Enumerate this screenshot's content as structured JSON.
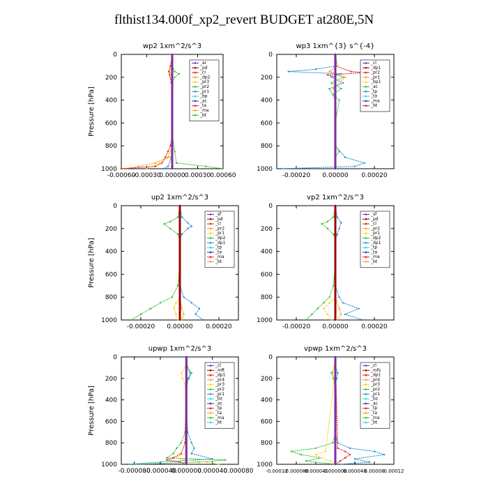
{
  "page": {
    "title": "flthist134.000f_xp2_revert  BUDGET at280E,5N"
  },
  "colors": {
    "purple": "#7f2aa6",
    "red": "#e02020",
    "darkred": "#a00000",
    "orange": "#ff9a1a",
    "yellow": "#ffd21a",
    "green": "#30c030",
    "blue": "#1e8fd0",
    "cyan": "#28d8e8",
    "navy": "#1a3aa0",
    "black": "#000000"
  },
  "chart_data": [
    {
      "type": "line",
      "title": "wp2  1xm^2/s^3",
      "ylabel": "Pressure [hPa]",
      "ylim": [
        1000,
        0
      ],
      "xlim": [
        -0.0006,
        0.0006
      ],
      "yticks": [
        "0",
        "200",
        "400",
        "600",
        "800",
        "1000"
      ],
      "xticks": [
        "-0.00060",
        "-0.00030",
        "0.00000",
        "0.00030",
        "0.00060"
      ],
      "legend_position": "top-right",
      "legend": [
        "_ar",
        "_pd",
        "_cl",
        "_dp2",
        "_pr3",
        "_pr2",
        "_pr1",
        "_bp",
        "_ac",
        "_ta",
        "_ma",
        "_bt"
      ],
      "series": [
        {
          "name": "_pr1",
          "color": "green",
          "y": [
            0,
            100,
            150,
            170,
            200,
            250,
            400,
            700,
            850,
            950,
            980,
            1000
          ],
          "x": [
            0,
            0,
            3e-05,
            8e-05,
            3e-05,
            0,
            0,
            0,
            3e-05,
            5e-05,
            0.0004,
            0.0006
          ]
        },
        {
          "name": "_pr2",
          "color": "yellow",
          "y": [
            0,
            100,
            150,
            200,
            300,
            600,
            800,
            900,
            950,
            1000
          ],
          "x": [
            0,
            0,
            -4e-05,
            -2e-05,
            0,
            0,
            0,
            -3e-05,
            -0.00015,
            -0.0003
          ]
        },
        {
          "name": "_pr3",
          "color": "orange",
          "y": [
            0,
            100,
            150,
            200,
            400,
            800,
            900,
            950,
            980,
            1000
          ],
          "x": [
            0,
            0,
            -3e-05,
            0,
            0,
            0,
            -5e-05,
            -0.0002,
            -0.0004,
            -0.00055
          ]
        },
        {
          "name": "_dp2",
          "color": "red",
          "y": [
            0,
            100,
            150,
            180,
            250,
            400,
            700,
            800,
            850,
            900,
            950,
            980,
            1000
          ],
          "x": [
            0,
            -2e-05,
            -4e-05,
            -3e-05,
            -1e-05,
            0,
            0,
            -2e-05,
            -5e-05,
            -8e-05,
            -0.00012,
            -0.0002,
            -0.0006
          ]
        },
        {
          "name": "_bp",
          "color": "blue",
          "y": [
            0,
            200,
            500,
            800,
            900,
            980,
            1000
          ],
          "x": [
            0,
            0,
            0,
            0,
            -1e-05,
            -5e-05,
            -0.0001
          ]
        },
        {
          "name": "_bt",
          "color": "purple",
          "y": [
            0,
            1000
          ],
          "x": [
            0,
            0
          ]
        }
      ]
    },
    {
      "type": "line",
      "title": "wp3  1xm^{3} s^{-4}",
      "ylabel": "",
      "ylim": [
        1000,
        0
      ],
      "xlim": [
        -0.0003,
        0.0003
      ],
      "yticks": [
        "0",
        "200",
        "400",
        "600",
        "800",
        "1000"
      ],
      "xticks": [
        "-0.00020",
        "0.00000",
        "0.00020"
      ],
      "legend_position": "top-right",
      "legend": [
        "_cl",
        "_dp1",
        "_pr2",
        "_pr1",
        "_bp1",
        "_ac",
        "_tp",
        "_ta",
        "_ma",
        "_bt"
      ],
      "series": [
        {
          "name": "_tp",
          "color": "blue",
          "y": [
            0,
            100,
            130,
            150,
            170,
            200,
            250,
            300,
            400,
            600,
            800,
            900,
            950,
            980,
            1000
          ],
          "x": [
            0,
            1e-05,
            -0.0001,
            -0.00024,
            3e-05,
            -2e-05,
            4e-05,
            -3e-05,
            0,
            0,
            0,
            5e-05,
            0.00015,
            0.0001,
            -0.00028
          ]
        },
        {
          "name": "_dp1",
          "color": "red",
          "y": [
            0,
            100,
            150,
            160,
            180,
            200,
            300,
            1000
          ],
          "x": [
            0,
            0,
            8e-05,
            0.00015,
            -4e-05,
            0,
            0,
            0
          ]
        },
        {
          "name": "_ac",
          "color": "green",
          "y": [
            0,
            100,
            150,
            200,
            250,
            300,
            350,
            400,
            600,
            800,
            850,
            900,
            1000
          ],
          "x": [
            0,
            1e-05,
            -3e-05,
            4e-05,
            -2e-05,
            3e-05,
            -1e-05,
            2e-05,
            0,
            0,
            2e-05,
            0,
            0
          ]
        },
        {
          "name": "_pr2",
          "color": "orange",
          "y": [
            0,
            100,
            150,
            200,
            300,
            400,
            1000
          ],
          "x": [
            0,
            1e-05,
            -3e-05,
            5e-05,
            -1e-05,
            0,
            0
          ]
        },
        {
          "name": "_cl",
          "color": "darkred",
          "y": [
            0,
            1000
          ],
          "x": [
            0,
            0
          ]
        },
        {
          "name": "_bt",
          "color": "purple",
          "y": [
            0,
            1000
          ],
          "x": [
            0,
            0
          ]
        }
      ]
    },
    {
      "type": "line",
      "title": "up2  1xm^2/s^3",
      "ylabel": "Pressure [hPa]",
      "ylim": [
        1000,
        0
      ],
      "xlim": [
        -0.0003,
        0.0003
      ],
      "yticks": [
        "0",
        "200",
        "400",
        "600",
        "800",
        "1000"
      ],
      "xticks": [
        "-0.00020",
        "0.00000",
        "0.00020"
      ],
      "legend_position": "top-right",
      "legend": [
        "_sf",
        "_pd",
        "_cl",
        "_pr2",
        "_pr1",
        "_dp2",
        "_dp1",
        "_tp",
        "_ta",
        "_ma",
        "_bt"
      ],
      "series": [
        {
          "name": "_dp2",
          "color": "green",
          "y": [
            0,
            100,
            140,
            160,
            200,
            250,
            300,
            500,
            700,
            800,
            850,
            900,
            950,
            1000
          ],
          "x": [
            0,
            -1e-05,
            -5e-05,
            -8e-05,
            -5e-05,
            -1e-05,
            0,
            0,
            -1e-05,
            -4e-05,
            -0.0001,
            -0.00015,
            -0.0002,
            -0.00025
          ]
        },
        {
          "name": "_dp1",
          "color": "blue",
          "y": [
            0,
            100,
            150,
            180,
            200,
            250,
            300,
            500,
            700,
            800,
            850,
            900,
            950,
            1000
          ],
          "x": [
            0,
            1e-05,
            4e-05,
            6e-05,
            4e-05,
            1e-05,
            0,
            0,
            0,
            2e-05,
            6e-05,
            0.0001,
            8e-05,
            0.00012
          ]
        },
        {
          "name": "_pr1",
          "color": "yellow",
          "y": [
            0,
            800,
            850,
            900,
            950,
            1000
          ],
          "x": [
            0,
            0,
            -2e-05,
            -3e-05,
            -2e-05,
            -1e-05
          ]
        },
        {
          "name": "_pr2",
          "color": "orange",
          "y": [
            0,
            800,
            900,
            950,
            1000
          ],
          "x": [
            0,
            0,
            1e-05,
            2e-05,
            1e-05
          ]
        },
        {
          "name": "_cl",
          "color": "red",
          "y": [
            0,
            1000
          ],
          "x": [
            0,
            0
          ]
        },
        {
          "name": "_bt",
          "color": "darkred",
          "y": [
            0,
            1000
          ],
          "x": [
            0,
            0
          ]
        }
      ]
    },
    {
      "type": "line",
      "title": "vp2  1xm^2/s^3",
      "ylabel": "",
      "ylim": [
        1000,
        0
      ],
      "xlim": [
        -0.0003,
        0.0003
      ],
      "yticks": [
        "0",
        "200",
        "400",
        "600",
        "800",
        "1000"
      ],
      "xticks": [
        "-0.00020",
        "0.00000",
        "0.00020"
      ],
      "legend_position": "top-right",
      "legend": [
        "_sf",
        "_pd",
        "_cl",
        "_pr2",
        "_pr1",
        "_dp2",
        "_dp1",
        "_tp",
        "_ta",
        "_ma",
        "_bt"
      ],
      "series": [
        {
          "name": "_dp2",
          "color": "green",
          "y": [
            0,
            100,
            140,
            160,
            200,
            250,
            300,
            500,
            700,
            800,
            850,
            900,
            950,
            1000
          ],
          "x": [
            0,
            -1e-05,
            -4e-05,
            -7e-05,
            -4e-05,
            -1e-05,
            0,
            0,
            -1e-05,
            -3e-05,
            -6e-05,
            -9e-05,
            -0.00012,
            -0.00015
          ]
        },
        {
          "name": "_dp1",
          "color": "blue",
          "y": [
            0,
            100,
            150,
            200,
            250,
            300,
            500,
            700,
            800,
            850,
            900,
            950,
            1000
          ],
          "x": [
            0,
            1e-05,
            3e-05,
            2e-05,
            1e-05,
            0,
            0,
            0,
            2e-05,
            4e-05,
            0.00012,
            5e-05,
            0.00014
          ]
        },
        {
          "name": "_pr1",
          "color": "yellow",
          "y": [
            0,
            800,
            850,
            900,
            950,
            1000
          ],
          "x": [
            0,
            0,
            -3e-05,
            -6e-05,
            -4e-05,
            -2e-05
          ]
        },
        {
          "name": "_pr2",
          "color": "orange",
          "y": [
            0,
            800,
            900,
            950,
            1000
          ],
          "x": [
            0,
            0,
            2e-05,
            3e-05,
            1e-05
          ]
        },
        {
          "name": "_cl",
          "color": "red",
          "y": [
            0,
            1000
          ],
          "x": [
            0,
            0
          ]
        },
        {
          "name": "_bt",
          "color": "darkred",
          "y": [
            0,
            1000
          ],
          "x": [
            0,
            0
          ]
        }
      ]
    },
    {
      "type": "line",
      "title": "upwp  1xm^2/s^3",
      "ylabel": "Pressure [hPa]",
      "ylim": [
        1000,
        0
      ],
      "xlim": [
        -0.0001,
        8e-05
      ],
      "yticks": [
        "0",
        "200",
        "400",
        "600",
        "800",
        "1000"
      ],
      "xticks": [
        "-0.000080",
        "-0.000040",
        "0.000000",
        "0.000040",
        "0.000080"
      ],
      "legend_position": "top-right",
      "legend": [
        "_cl",
        "_mft",
        "_dp1",
        "_pr4",
        "_pr3",
        "_pr2",
        "_pr1",
        "_bz",
        "_ac",
        "_tp",
        "_ta",
        "_ma",
        "_bt"
      ],
      "series": [
        {
          "name": "_ac",
          "color": "green",
          "y": [
            0,
            100,
            150,
            200,
            250,
            300,
            500,
            700,
            800,
            850,
            900,
            940,
            960,
            980,
            1000
          ],
          "x": [
            0,
            2e-06,
            8e-06,
            4e-06,
            1e-06,
            0,
            0,
            -2e-06,
            -8e-06,
            -1.5e-05,
            -2e-05,
            -3e-05,
            6e-05,
            2e-05,
            -8e-05
          ]
        },
        {
          "name": "_tp",
          "color": "blue",
          "y": [
            0,
            100,
            150,
            200,
            250,
            300,
            500,
            700,
            800,
            850,
            900,
            950,
            980,
            1000
          ],
          "x": [
            0,
            1e-06,
            6e-06,
            3e-06,
            0,
            0,
            0,
            2e-06,
            8e-06,
            1.2e-05,
            8e-06,
            4e-05,
            -4e-05,
            -9e-05
          ]
        },
        {
          "name": "_pr3",
          "color": "yellow",
          "y": [
            0,
            100,
            150,
            200,
            250,
            900,
            940,
            960,
            980,
            1000
          ],
          "x": [
            0,
            -2e-06,
            -8e-06,
            -6e-06,
            -2e-06,
            0,
            -2e-05,
            -4e-06,
            3e-05,
            5e-05
          ]
        },
        {
          "name": "_pr4",
          "color": "red",
          "y": [
            0,
            800,
            900,
            940,
            960,
            980,
            1000
          ],
          "x": [
            0,
            -2e-06,
            -8e-06,
            -2e-05,
            -3e-05,
            -1e-05,
            0
          ]
        },
        {
          "name": "_mft",
          "color": "darkred",
          "y": [
            0,
            1000
          ],
          "x": [
            0,
            0
          ]
        },
        {
          "name": "_bt",
          "color": "purple",
          "y": [
            0,
            1000
          ],
          "x": [
            0,
            0
          ]
        }
      ]
    },
    {
      "type": "line",
      "title": "vpwp  1xm^2/s^3",
      "ylabel": "",
      "ylim": [
        1000,
        0
      ],
      "xlim": [
        -0.00012,
        0.00012
      ],
      "yticks": [
        "0",
        "200",
        "400",
        "600",
        "800",
        "1000"
      ],
      "xticks": [
        "-0.00012",
        "-0.000080",
        "-0.000040",
        "0.000000",
        "0.000040",
        "0.00008",
        "0.00012"
      ],
      "legend_position": "top-right",
      "legend": [
        "_cl",
        "_mfs",
        "_dp1",
        "_pr4",
        "_pr3",
        "_pr2",
        "_pr1",
        "_bz",
        "_ac",
        "_tp",
        "_ta",
        "_ma",
        "_bt"
      ],
      "series": [
        {
          "name": "_ac",
          "color": "green",
          "y": [
            0,
            100,
            150,
            200,
            250,
            300,
            500,
            700,
            800,
            850,
            880,
            910,
            940,
            970,
            1000
          ],
          "x": [
            0,
            -2e-06,
            -8e-06,
            -4e-06,
            -1e-06,
            0,
            0,
            0,
            -5e-06,
            -4e-05,
            -9e-05,
            -7e-05,
            -3e-05,
            -6e-05,
            0
          ]
        },
        {
          "name": "_tp",
          "color": "blue",
          "y": [
            0,
            100,
            150,
            200,
            250,
            300,
            500,
            700,
            800,
            850,
            880,
            910,
            950,
            980,
            1000
          ],
          "x": [
            0,
            1e-06,
            5e-06,
            3e-06,
            0,
            0,
            0,
            0,
            5e-06,
            3e-05,
            8e-05,
            0.0001,
            4e-05,
            7e-05,
            1e-05
          ]
        },
        {
          "name": "_pr3",
          "color": "yellow",
          "y": [
            0,
            150,
            200,
            880,
            910,
            940,
            970,
            1000
          ],
          "x": [
            0,
            -5e-06,
            -2e-06,
            -2e-05,
            -4e-05,
            -3e-05,
            -1e-05,
            0
          ]
        },
        {
          "name": "_pr4",
          "color": "red",
          "y": [
            0,
            850,
            880,
            910,
            940,
            970,
            1000
          ],
          "x": [
            0,
            5e-06,
            2e-05,
            3e-05,
            2e-05,
            1e-05,
            0
          ]
        },
        {
          "name": "_mfs",
          "color": "darkred",
          "y": [
            0,
            1000
          ],
          "x": [
            0,
            0
          ]
        },
        {
          "name": "_bt",
          "color": "purple",
          "y": [
            0,
            1000
          ],
          "x": [
            0,
            0
          ]
        }
      ]
    }
  ]
}
